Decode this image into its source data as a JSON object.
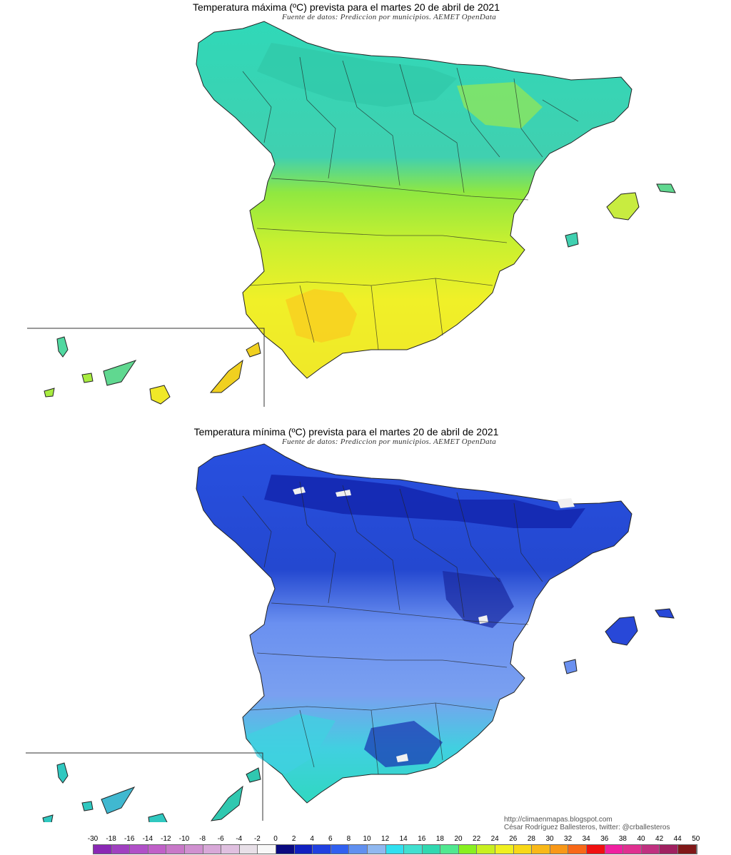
{
  "maps": {
    "max": {
      "title": "Temperatura máxima (ºC) prevista para el martes 20 de abril de 2021",
      "subtitle": "Fuente de datos: Prediccion por municipios. AEMET OpenData"
    },
    "min": {
      "title": "Temperatura mínima (ºC) prevista para el martes 20 de abril de 2021",
      "subtitle": "Fuente de datos: Prediccion por municipios. AEMET OpenData"
    }
  },
  "credits": {
    "url": "http://climaenmapas.blogspot.com",
    "author": "César Rodríguez Ballesteros, twitter: @crballesteros"
  },
  "legend": {
    "labels": [
      "-30",
      "-18",
      "-16",
      "-14",
      "-12",
      "-10",
      "-8",
      "-6",
      "-4",
      "-2",
      "0",
      "2",
      "4",
      "6",
      "8",
      "10",
      "12",
      "14",
      "16",
      "18",
      "20",
      "22",
      "24",
      "26",
      "28",
      "30",
      "32",
      "34",
      "36",
      "38",
      "40",
      "42",
      "44",
      "50"
    ],
    "colors": [
      "#8a28b4",
      "#a040c0",
      "#b050c8",
      "#c060c8",
      "#c878c8",
      "#d090d0",
      "#d8a8d8",
      "#e0c0e0",
      "#e8e0e8",
      "#f8f8f8",
      "#0a0a80",
      "#1020c0",
      "#2040e0",
      "#3060f0",
      "#6090f0",
      "#90b8f0",
      "#30e0f0",
      "#40e0d0",
      "#30d8b0",
      "#50e890",
      "#88f020",
      "#c8f020",
      "#f0f020",
      "#f8d818",
      "#f8b818",
      "#f89818",
      "#f86818",
      "#f01010",
      "#f020a0",
      "#e03090",
      "#c03080",
      "#a02060",
      "#801818"
    ]
  },
  "icons": {
    "max_map": "spain-temperature-map",
    "min_map": "spain-temperature-map"
  }
}
